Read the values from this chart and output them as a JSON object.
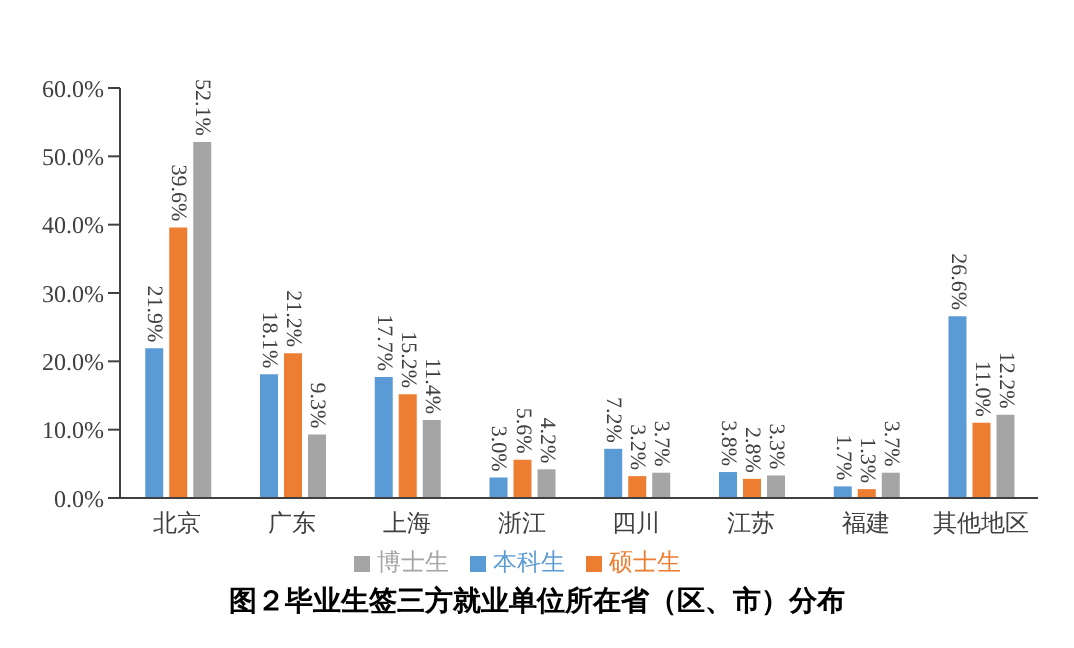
{
  "chart_data": {
    "type": "bar",
    "title": "图２毕业生签三方就业单位所在省（区、市）分布",
    "categories": [
      "北京",
      "广东",
      "上海",
      "浙江",
      "四川",
      "江苏",
      "福建",
      "其他地区"
    ],
    "series": [
      {
        "name": "本科生",
        "color": "#5b9bd5",
        "values": [
          21.9,
          18.1,
          17.7,
          3.0,
          7.2,
          3.8,
          1.7,
          26.6
        ],
        "value_labels": [
          "21.9%",
          "18.1%",
          "17.7%",
          "3.0%",
          "7.2%",
          "3.8%",
          "1.7%",
          "26.6%"
        ]
      },
      {
        "name": "硕士生",
        "color": "#ed7d31",
        "values": [
          39.6,
          21.2,
          15.2,
          5.6,
          3.2,
          2.8,
          1.3,
          11.0
        ],
        "value_labels": [
          "39.6%",
          "21.2%",
          "15.2%",
          "5.6%",
          "3.2%",
          "2.8%",
          "1.3%",
          "11.0%"
        ]
      },
      {
        "name": "博士生",
        "color": "#a5a5a5",
        "values": [
          52.1,
          9.3,
          11.4,
          4.2,
          3.7,
          3.3,
          3.7,
          12.2
        ],
        "value_labels": [
          "52.1%",
          "9.3%",
          "11.4%",
          "4.2%",
          "3.7%",
          "3.3%",
          "3.7%",
          "12.2%"
        ]
      }
    ],
    "ylim": [
      0,
      60
    ],
    "yticks": [
      {
        "value": 0,
        "label": "0.0%"
      },
      {
        "value": 10,
        "label": "10.0%"
      },
      {
        "value": 20,
        "label": "20.0%"
      },
      {
        "value": 30,
        "label": "30.0%"
      },
      {
        "value": 40,
        "label": "40.0%"
      },
      {
        "value": 50,
        "label": "50.0%"
      },
      {
        "value": 60,
        "label": "60.0%"
      }
    ],
    "grid": false,
    "legend": "bottom"
  }
}
